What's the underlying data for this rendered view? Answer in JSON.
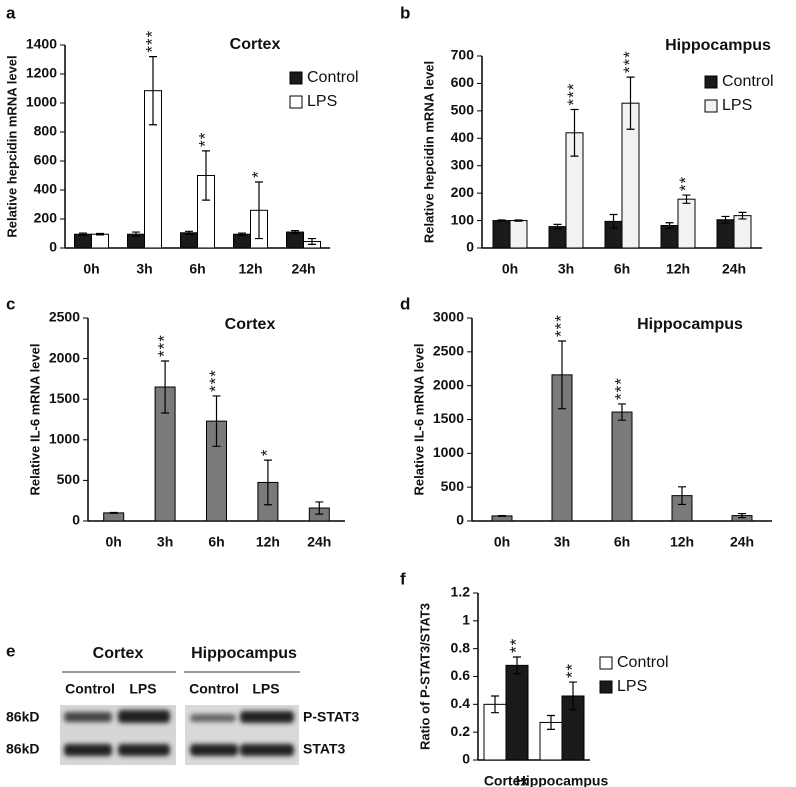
{
  "chart_data": [
    {
      "type": "bar",
      "panel": "a",
      "title": "Cortex",
      "ylabel": "Relative hepcidin mRNA level",
      "categories": [
        "0h",
        "3h",
        "6h",
        "12h",
        "24h"
      ],
      "series": [
        {
          "name": "Control",
          "color": "#1a1a1a",
          "values": [
            95,
            95,
            105,
            95,
            110
          ],
          "errors": [
            8,
            15,
            10,
            8,
            10
          ]
        },
        {
          "name": "LPS",
          "color": "#ffffff",
          "values": [
            95,
            1085,
            500,
            260,
            45
          ],
          "errors": [
            5,
            235,
            170,
            195,
            20
          ]
        }
      ],
      "annotations": [
        null,
        "***",
        "**",
        "*",
        null
      ],
      "ylim": [
        0,
        1400
      ],
      "yticks": [
        0,
        200,
        400,
        600,
        800,
        1000,
        1200,
        1400
      ],
      "legend": "upper right"
    },
    {
      "type": "bar",
      "panel": "b",
      "title": "Hippocampus",
      "ylabel": "Relative hepcidin mRNA level",
      "categories": [
        "0h",
        "3h",
        "6h",
        "12h",
        "24h"
      ],
      "series": [
        {
          "name": "Control",
          "color": "#1a1a1a",
          "values": [
            100,
            78,
            97,
            82,
            103
          ],
          "errors": [
            2,
            8,
            25,
            10,
            12
          ]
        },
        {
          "name": "LPS",
          "color": "#f2f2f2",
          "values": [
            100,
            420,
            528,
            178,
            118
          ],
          "errors": [
            2,
            85,
            95,
            15,
            12
          ]
        }
      ],
      "annotations": [
        null,
        "***",
        "***",
        "**",
        null
      ],
      "ylim": [
        0,
        700
      ],
      "yticks": [
        0,
        100,
        200,
        300,
        400,
        500,
        600,
        700
      ],
      "legend": "upper right"
    },
    {
      "type": "bar",
      "panel": "c",
      "title": "Cortex",
      "ylabel": "Relative IL-6 mRNA level",
      "categories": [
        "0h",
        "3h",
        "6h",
        "12h",
        "24h"
      ],
      "series": [
        {
          "color": "#7a7a7a",
          "values": [
            100,
            1650,
            1230,
            475,
            160
          ],
          "errors": [
            5,
            320,
            310,
            275,
            75
          ]
        }
      ],
      "annotations": [
        null,
        "***",
        "***",
        "*",
        null
      ],
      "ylim": [
        0,
        2500
      ],
      "yticks": [
        0,
        500,
        1000,
        1500,
        2000,
        2500
      ]
    },
    {
      "type": "bar",
      "panel": "d",
      "title": "Hippocampus",
      "ylabel": "Relative IL-6 mRNA level",
      "categories": [
        "0h",
        "3h",
        "6h",
        "12h",
        "24h"
      ],
      "series": [
        {
          "color": "#7a7a7a",
          "values": [
            75,
            2160,
            1610,
            375,
            80
          ],
          "errors": [
            5,
            500,
            120,
            130,
            30
          ]
        }
      ],
      "annotations": [
        null,
        "***",
        "***",
        null,
        null
      ],
      "ylim": [
        0,
        3000
      ],
      "yticks": [
        0,
        500,
        1000,
        1500,
        2000,
        2500,
        3000
      ]
    },
    {
      "type": "bar",
      "panel": "f",
      "ylabel": "Ratio of P-STAT3/STAT3",
      "categories": [
        "Cortex",
        "Hippocampus"
      ],
      "series": [
        {
          "name": "Control",
          "color": "#ffffff",
          "values": [
            0.4,
            0.27
          ],
          "errors": [
            0.06,
            0.05
          ]
        },
        {
          "name": "LPS",
          "color": "#1a1a1a",
          "values": [
            0.68,
            0.46
          ],
          "errors": [
            0.06,
            0.1
          ]
        }
      ],
      "annotations": [
        "**",
        "**"
      ],
      "ylim": [
        0,
        1.2
      ],
      "yticks": [
        0,
        0.2,
        0.4,
        0.6,
        0.8,
        1,
        1.2
      ],
      "legend": "right"
    }
  ],
  "blot": {
    "panel": "e",
    "groups": [
      "Cortex",
      "Hippocampus"
    ],
    "lanes": [
      "Control",
      "LPS",
      "Control",
      "LPS"
    ],
    "rows": [
      {
        "size": "86kD",
        "label": "P-STAT3"
      },
      {
        "size": "86kD",
        "label": "STAT3"
      }
    ]
  }
}
